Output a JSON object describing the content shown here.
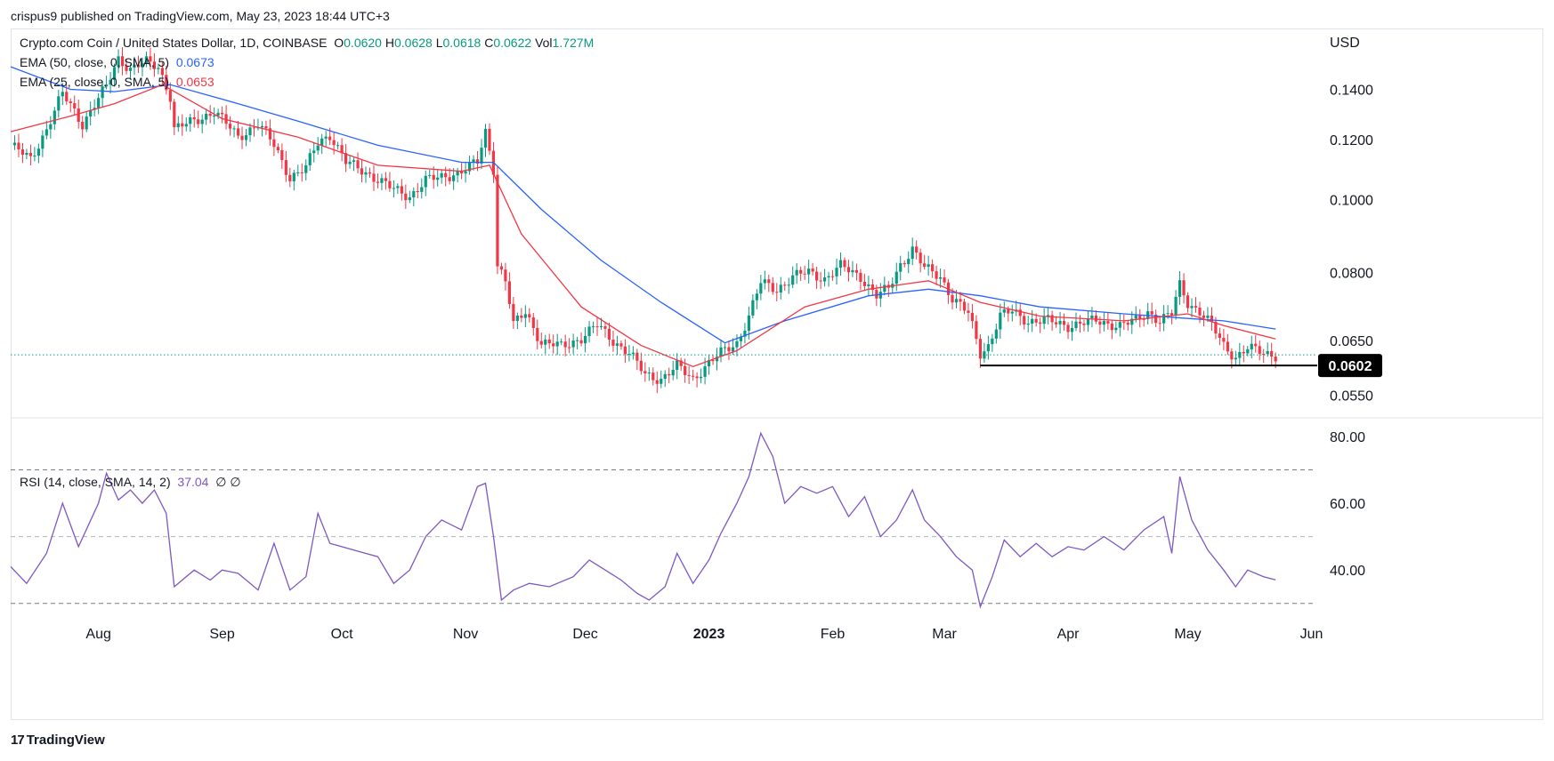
{
  "header": {
    "publisher_line": "crispus9 published on TradingView.com, May 23, 2023 18:44 UTC+3"
  },
  "legend": {
    "symbol": "Crypto.com Coin / United States Dollar, 1D, COINBASE",
    "ohlc": {
      "o_label": "O",
      "o": "0.0620",
      "h_label": "H",
      "h": "0.0628",
      "l_label": "L",
      "l": "0.0618",
      "c_label": "C",
      "c": "0.0622",
      "vol_label": "Vol",
      "vol": "1.727M"
    },
    "ema50": {
      "label": "EMA (50, close, 0, SMA, 5)",
      "value": "0.0673"
    },
    "ema25": {
      "label": "EMA (25, close, 0, SMA, 5)",
      "value": "0.0653"
    },
    "rsi": {
      "label": "RSI (14, close, SMA, 14, 2)",
      "value": "37.04",
      "extra": "∅  ∅"
    }
  },
  "branding": {
    "name": "TradingView"
  },
  "colors": {
    "up": "#089981",
    "down": "#f23645",
    "ema50": "#2962ff",
    "ema25": "#f23645",
    "rsi": "#7e57c2",
    "last_price_badge": "#000000"
  },
  "chart_data": [
    {
      "type": "candlestick",
      "title": "Crypto.com Coin / United States Dollar, 1D, COINBASE",
      "ylabel": "USD",
      "yscale": "log",
      "y_ticks": [
        0.14,
        0.12,
        0.1,
        0.08,
        0.065,
        0.055
      ],
      "y_tick_labels": [
        "0.1400",
        "0.1200",
        "0.1000",
        "0.0800",
        "0.0650",
        "0.0550"
      ],
      "ylim": [
        0.052,
        0.165
      ],
      "x_labels": [
        "Aug",
        "Sep",
        "Oct",
        "Nov",
        "Dec",
        "2023",
        "Feb",
        "Mar",
        "Apr",
        "May",
        "Jun"
      ],
      "x_label_dates": [
        "2022-08-01",
        "2022-09-01",
        "2022-10-01",
        "2022-11-01",
        "2022-12-01",
        "2023-01-01",
        "2023-02-01",
        "2023-03-01",
        "2023-04-01",
        "2023-05-01",
        "2023-06-01"
      ],
      "xlim": [
        "2022-07-10",
        "2023-06-02"
      ],
      "price_path": [
        [
          "2022-07-10",
          0.118
        ],
        [
          "2022-07-15",
          0.113
        ],
        [
          "2022-07-19",
          0.124
        ],
        [
          "2022-07-23",
          0.138
        ],
        [
          "2022-07-26",
          0.131
        ],
        [
          "2022-07-28",
          0.126
        ],
        [
          "2022-08-01",
          0.136
        ],
        [
          "2022-08-03",
          0.141
        ],
        [
          "2022-08-06",
          0.154
        ],
        [
          "2022-08-09",
          0.149
        ],
        [
          "2022-08-13",
          0.152
        ],
        [
          "2022-08-16",
          0.15
        ],
        [
          "2022-08-19",
          0.137
        ],
        [
          "2022-08-20",
          0.124
        ],
        [
          "2022-08-25",
          0.127
        ],
        [
          "2022-08-30",
          0.131
        ],
        [
          "2022-09-05",
          0.121
        ],
        [
          "2022-09-10",
          0.126
        ],
        [
          "2022-09-14",
          0.118
        ],
        [
          "2022-09-18",
          0.107
        ],
        [
          "2022-09-22",
          0.11
        ],
        [
          "2022-09-25",
          0.119
        ],
        [
          "2022-09-28",
          0.122
        ],
        [
          "2022-10-02",
          0.112
        ],
        [
          "2022-10-08",
          0.108
        ],
        [
          "2022-10-14",
          0.103
        ],
        [
          "2022-10-18",
          0.101
        ],
        [
          "2022-10-22",
          0.106
        ],
        [
          "2022-10-26",
          0.107
        ],
        [
          "2022-10-31",
          0.109
        ],
        [
          "2022-11-04",
          0.112
        ],
        [
          "2022-11-06",
          0.123
        ],
        [
          "2022-11-08",
          0.11
        ],
        [
          "2022-11-09",
          0.082
        ],
        [
          "2022-11-11",
          0.078
        ],
        [
          "2022-11-13",
          0.068
        ],
        [
          "2022-11-16",
          0.071
        ],
        [
          "2022-11-20",
          0.0645
        ],
        [
          "2022-11-25",
          0.0638
        ],
        [
          "2022-11-30",
          0.0655
        ],
        [
          "2022-12-04",
          0.068
        ],
        [
          "2022-12-08",
          0.065
        ],
        [
          "2022-12-12",
          0.0625
        ],
        [
          "2022-12-16",
          0.0585
        ],
        [
          "2022-12-20",
          0.0578
        ],
        [
          "2022-12-24",
          0.06
        ],
        [
          "2022-12-28",
          0.0578
        ],
        [
          "2022-12-31",
          0.06
        ],
        [
          "2023-01-04",
          0.0625
        ],
        [
          "2023-01-08",
          0.0645
        ],
        [
          "2023-01-11",
          0.07
        ],
        [
          "2023-01-14",
          0.0775
        ],
        [
          "2023-01-18",
          0.076
        ],
        [
          "2023-01-22",
          0.079
        ],
        [
          "2023-01-26",
          0.08
        ],
        [
          "2023-01-30",
          0.0785
        ],
        [
          "2023-02-03",
          0.0815
        ],
        [
          "2023-02-08",
          0.079
        ],
        [
          "2023-02-12",
          0.0745
        ],
        [
          "2023-02-15",
          0.076
        ],
        [
          "2023-02-18",
          0.082
        ],
        [
          "2023-02-21",
          0.086
        ],
        [
          "2023-02-24",
          0.081
        ],
        [
          "2023-02-28",
          0.079
        ],
        [
          "2023-03-03",
          0.074
        ],
        [
          "2023-03-07",
          0.0705
        ],
        [
          "2023-03-10",
          0.0625
        ],
        [
          "2023-03-12",
          0.064
        ],
        [
          "2023-03-15",
          0.07
        ],
        [
          "2023-03-18",
          0.071
        ],
        [
          "2023-03-22",
          0.069
        ],
        [
          "2023-03-27",
          0.069
        ],
        [
          "2023-04-01",
          0.068
        ],
        [
          "2023-04-08",
          0.069
        ],
        [
          "2023-04-14",
          0.068
        ],
        [
          "2023-04-18",
          0.069
        ],
        [
          "2023-04-21",
          0.071
        ],
        [
          "2023-04-24",
          0.069
        ],
        [
          "2023-04-27",
          0.0705
        ],
        [
          "2023-04-29",
          0.077
        ],
        [
          "2023-05-01",
          0.073
        ],
        [
          "2023-05-04",
          0.071
        ],
        [
          "2023-05-07",
          0.068
        ],
        [
          "2023-05-10",
          0.064
        ],
        [
          "2023-05-13",
          0.0618
        ],
        [
          "2023-05-16",
          0.0635
        ],
        [
          "2023-05-20",
          0.0625
        ],
        [
          "2023-05-23",
          0.0622
        ]
      ],
      "series": [
        {
          "name": "EMA (50, close, 0, SMA, 5)",
          "last": 0.0673,
          "points": [
            [
              "2022-07-10",
              0.15
            ],
            [
              "2022-07-25",
              0.14
            ],
            [
              "2022-08-05",
              0.139
            ],
            [
              "2022-08-19",
              0.142
            ],
            [
              "2022-09-05",
              0.134
            ],
            [
              "2022-09-20",
              0.127
            ],
            [
              "2022-10-10",
              0.118
            ],
            [
              "2022-10-31",
              0.112
            ],
            [
              "2022-11-08",
              0.112
            ],
            [
              "2022-11-20",
              0.097
            ],
            [
              "2022-12-05",
              0.083
            ],
            [
              "2022-12-20",
              0.073
            ],
            [
              "2023-01-05",
              0.0645
            ],
            [
              "2023-01-20",
              0.069
            ],
            [
              "2023-02-10",
              0.0745
            ],
            [
              "2023-02-25",
              0.076
            ],
            [
              "2023-03-10",
              0.0745
            ],
            [
              "2023-03-25",
              0.072
            ],
            [
              "2023-04-15",
              0.0705
            ],
            [
              "2023-05-01",
              0.0695
            ],
            [
              "2023-05-10",
              0.069
            ],
            [
              "2023-05-23",
              0.0673
            ]
          ]
        },
        {
          "name": "EMA (25, close, 0, SMA, 5)",
          "last": 0.0653,
          "points": [
            [
              "2022-07-10",
              0.123
            ],
            [
              "2022-07-25",
              0.129
            ],
            [
              "2022-08-05",
              0.134
            ],
            [
              "2022-08-17",
              0.142
            ],
            [
              "2022-09-01",
              0.128
            ],
            [
              "2022-09-20",
              0.121
            ],
            [
              "2022-10-10",
              0.111
            ],
            [
              "2022-10-31",
              0.109
            ],
            [
              "2022-11-07",
              0.111
            ],
            [
              "2022-11-15",
              0.09
            ],
            [
              "2022-11-30",
              0.072
            ],
            [
              "2022-12-15",
              0.064
            ],
            [
              "2022-12-28",
              0.06
            ],
            [
              "2023-01-08",
              0.063
            ],
            [
              "2023-01-25",
              0.072
            ],
            [
              "2023-02-10",
              0.076
            ],
            [
              "2023-02-25",
              0.078
            ],
            [
              "2023-03-10",
              0.073
            ],
            [
              "2023-03-25",
              0.07
            ],
            [
              "2023-04-15",
              0.069
            ],
            [
              "2023-05-01",
              0.0705
            ],
            [
              "2023-05-10",
              0.068
            ],
            [
              "2023-05-23",
              0.0653
            ]
          ]
        }
      ],
      "last_price": 0.0602,
      "last_price_label": "0.0602",
      "current_price": 0.0622,
      "support_line": {
        "from": "2023-03-10",
        "value": 0.0602
      }
    },
    {
      "type": "line",
      "title": "RSI (14, close, SMA, 14, 2)",
      "y_ticks": [
        80.0,
        60.0,
        40.0
      ],
      "y_tick_labels": [
        "80.00",
        "60.00",
        "40.00"
      ],
      "ylim": [
        27,
        84
      ],
      "bands": [
        70,
        50,
        30
      ],
      "last": 37.04,
      "series": [
        {
          "name": "RSI (14, close, SMA, 14, 2)",
          "points": [
            [
              "2022-07-10",
              41
            ],
            [
              "2022-07-14",
              36
            ],
            [
              "2022-07-19",
              45
            ],
            [
              "2022-07-23",
              60
            ],
            [
              "2022-07-27",
              47
            ],
            [
              "2022-08-01",
              60
            ],
            [
              "2022-08-03",
              69
            ],
            [
              "2022-08-06",
              61
            ],
            [
              "2022-08-09",
              64
            ],
            [
              "2022-08-12",
              60
            ],
            [
              "2022-08-15",
              64
            ],
            [
              "2022-08-18",
              57
            ],
            [
              "2022-08-20",
              35
            ],
            [
              "2022-08-25",
              40
            ],
            [
              "2022-08-29",
              37
            ],
            [
              "2022-09-01",
              40
            ],
            [
              "2022-09-05",
              39
            ],
            [
              "2022-09-10",
              34
            ],
            [
              "2022-09-14",
              48
            ],
            [
              "2022-09-18",
              34
            ],
            [
              "2022-09-22",
              38
            ],
            [
              "2022-09-25",
              57
            ],
            [
              "2022-09-28",
              48
            ],
            [
              "2022-10-04",
              46
            ],
            [
              "2022-10-10",
              44
            ],
            [
              "2022-10-14",
              36
            ],
            [
              "2022-10-18",
              40
            ],
            [
              "2022-10-22",
              50
            ],
            [
              "2022-10-26",
              55
            ],
            [
              "2022-10-31",
              52
            ],
            [
              "2022-11-04",
              65
            ],
            [
              "2022-11-06",
              66
            ],
            [
              "2022-11-08",
              50
            ],
            [
              "2022-11-10",
              31
            ],
            [
              "2022-11-13",
              34
            ],
            [
              "2022-11-17",
              36
            ],
            [
              "2022-11-22",
              35
            ],
            [
              "2022-11-28",
              38
            ],
            [
              "2022-12-02",
              43
            ],
            [
              "2022-12-06",
              40
            ],
            [
              "2022-12-10",
              37
            ],
            [
              "2022-12-14",
              33
            ],
            [
              "2022-12-17",
              31
            ],
            [
              "2022-12-21",
              35
            ],
            [
              "2022-12-24",
              45
            ],
            [
              "2022-12-28",
              36
            ],
            [
              "2023-01-01",
              43
            ],
            [
              "2023-01-04",
              51
            ],
            [
              "2023-01-08",
              60
            ],
            [
              "2023-01-11",
              68
            ],
            [
              "2023-01-14",
              81
            ],
            [
              "2023-01-17",
              74
            ],
            [
              "2023-01-20",
              60
            ],
            [
              "2023-01-24",
              65
            ],
            [
              "2023-01-28",
              63
            ],
            [
              "2023-02-01",
              65
            ],
            [
              "2023-02-05",
              56
            ],
            [
              "2023-02-09",
              62
            ],
            [
              "2023-02-13",
              50
            ],
            [
              "2023-02-17",
              55
            ],
            [
              "2023-02-21",
              64
            ],
            [
              "2023-02-24",
              55
            ],
            [
              "2023-02-28",
              50
            ],
            [
              "2023-03-04",
              44
            ],
            [
              "2023-03-08",
              40
            ],
            [
              "2023-03-10",
              29
            ],
            [
              "2023-03-13",
              38
            ],
            [
              "2023-03-16",
              49
            ],
            [
              "2023-03-20",
              44
            ],
            [
              "2023-03-24",
              48
            ],
            [
              "2023-03-28",
              44
            ],
            [
              "2023-04-01",
              47
            ],
            [
              "2023-04-05",
              46
            ],
            [
              "2023-04-10",
              50
            ],
            [
              "2023-04-15",
              46
            ],
            [
              "2023-04-20",
              52
            ],
            [
              "2023-04-25",
              56
            ],
            [
              "2023-04-27",
              45
            ],
            [
              "2023-04-29",
              68
            ],
            [
              "2023-05-02",
              55
            ],
            [
              "2023-05-06",
              46
            ],
            [
              "2023-05-10",
              40
            ],
            [
              "2023-05-13",
              35
            ],
            [
              "2023-05-16",
              40
            ],
            [
              "2023-05-20",
              38
            ],
            [
              "2023-05-23",
              37.04
            ]
          ]
        }
      ]
    }
  ]
}
